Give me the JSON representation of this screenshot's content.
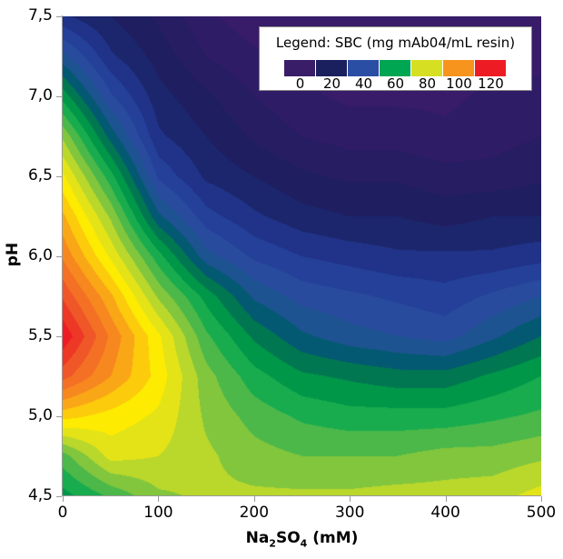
{
  "chart_data": {
    "type": "heatmap",
    "subtype": "filled-contour",
    "title": "",
    "xlabel": "Na2SO4 (mM)",
    "xlabel_main": "Na",
    "xlabel_sub1": "2",
    "xlabel_mid": "SO",
    "xlabel_sub2": "4",
    "xlabel_tail": " (mM)",
    "ylabel": "pH",
    "xlim": [
      0,
      500
    ],
    "ylim": [
      4.5,
      7.5
    ],
    "x_ticks": [
      "0",
      "100",
      "200",
      "300",
      "400",
      "500"
    ],
    "y_ticks": [
      "7,5",
      "7,0",
      "6,5",
      "6,0",
      "5,5",
      "5,0",
      "4,5"
    ],
    "legend": {
      "title": "Legend: SBC (mg mAb04/mL resin)",
      "levels": [
        "0",
        "20",
        "40",
        "60",
        "80",
        "100",
        "120"
      ],
      "colors": [
        "#3a1d68",
        "#1a1f5e",
        "#2b4ea5",
        "#00a651",
        "#d7df23",
        "#f7941d",
        "#ed1c24"
      ]
    },
    "x": [
      0,
      50,
      100,
      150,
      200,
      250,
      300,
      350,
      400,
      450,
      500
    ],
    "y": [
      4.5,
      4.75,
      5.0,
      5.25,
      5.5,
      5.75,
      6.0,
      6.25,
      6.5,
      6.75,
      7.0,
      7.25,
      7.5
    ],
    "z_label": "SBC (mg mAb04/mL resin)",
    "z": [
      [
        58,
        66,
        74,
        76,
        76,
        76,
        76,
        77,
        77,
        78,
        82
      ],
      [
        68,
        82,
        80,
        76,
        72,
        70,
        70,
        70,
        72,
        72,
        74
      ],
      [
        92,
        88,
        84,
        74,
        68,
        64,
        62,
        62,
        62,
        64,
        66
      ],
      [
        112,
        100,
        88,
        72,
        62,
        56,
        54,
        52,
        52,
        56,
        60
      ],
      [
        124,
        104,
        86,
        66,
        54,
        46,
        42,
        40,
        38,
        44,
        50
      ],
      [
        114,
        96,
        74,
        58,
        44,
        38,
        36,
        34,
        32,
        36,
        40
      ],
      [
        104,
        84,
        62,
        42,
        34,
        30,
        28,
        26,
        26,
        26,
        28
      ],
      [
        96,
        74,
        46,
        32,
        26,
        22,
        20,
        20,
        18,
        20,
        20
      ],
      [
        86,
        62,
        34,
        24,
        20,
        16,
        14,
        14,
        12,
        12,
        14
      ],
      [
        74,
        48,
        26,
        20,
        14,
        10,
        8,
        8,
        6,
        8,
        10
      ],
      [
        58,
        36,
        22,
        16,
        10,
        6,
        4,
        4,
        4,
        6,
        6
      ],
      [
        42,
        26,
        18,
        10,
        6,
        4,
        2,
        2,
        2,
        4,
        4
      ],
      [
        26,
        20,
        14,
        6,
        2,
        0,
        0,
        0,
        2,
        2,
        2
      ]
    ],
    "grid": false,
    "legend_position": "upper right (inside plot)"
  }
}
